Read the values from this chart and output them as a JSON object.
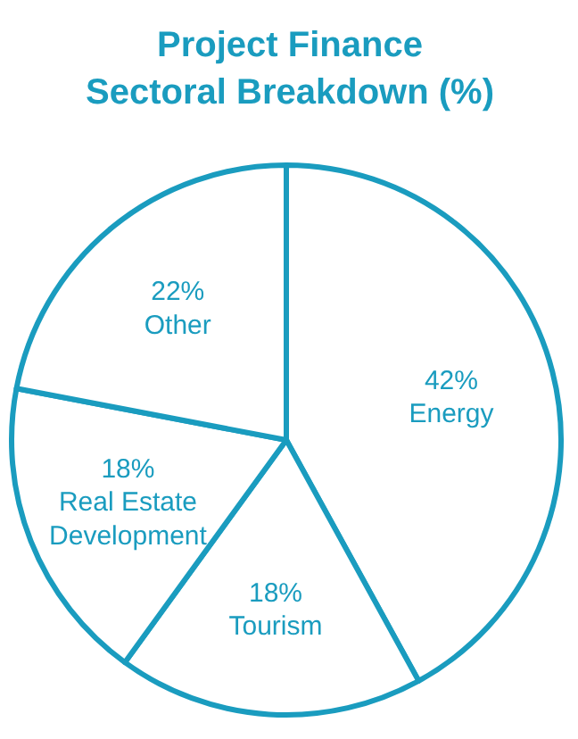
{
  "chart_data": {
    "type": "pie",
    "title": "Project Finance\nSectoral Breakdown (%)",
    "categories": [
      "Energy",
      "Tourism",
      "Real Estate Development",
      "Other"
    ],
    "values": [
      42,
      18,
      18,
      22
    ],
    "value_labels": [
      "42%",
      "18%",
      "18%",
      "22%"
    ],
    "colors": [
      "#ffffff",
      "#ffffff",
      "#ffffff",
      "#ffffff"
    ]
  }
}
